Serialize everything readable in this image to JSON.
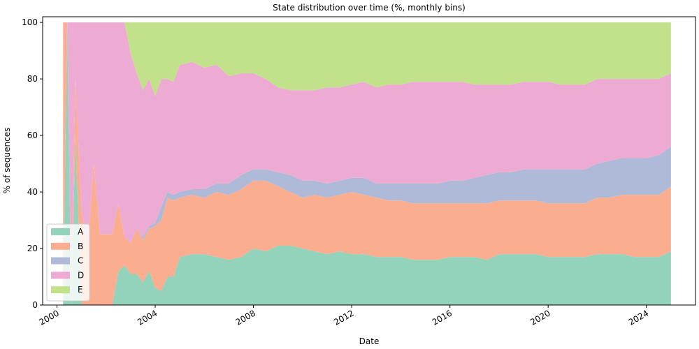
{
  "chart_data": {
    "type": "area",
    "stacked": true,
    "title": "State distribution over time (%, monthly bins)",
    "xlabel": "Date",
    "ylabel": "% of sequences",
    "xlim": [
      "1999-06-01",
      "2026-01-01"
    ],
    "ylim": [
      0,
      102
    ],
    "x_ticks": [
      "2000",
      "2004",
      "2008",
      "2012",
      "2016",
      "2020",
      "2024"
    ],
    "y_ticks": [
      0,
      20,
      40,
      60,
      80,
      100
    ],
    "grid": false,
    "legend": {
      "position": "lower-left",
      "entries": [
        "A",
        "B",
        "C",
        "D",
        "E"
      ]
    },
    "colors": {
      "A": "#93d3bc",
      "B": "#fbae8f",
      "C": "#aebad8",
      "D": "#edabd3",
      "E": "#c1e28a"
    },
    "x": [
      "2000-04",
      "2000-06",
      "2000-08",
      "2000-10",
      "2001-01",
      "2001-04",
      "2001-07",
      "2001-10",
      "2002-01",
      "2002-04",
      "2002-07",
      "2002-10",
      "2003-01",
      "2003-04",
      "2003-07",
      "2003-10",
      "2004-01",
      "2004-04",
      "2004-07",
      "2004-10",
      "2005-01",
      "2005-07",
      "2006-01",
      "2006-07",
      "2007-01",
      "2007-07",
      "2008-01",
      "2008-07",
      "2009-01",
      "2009-07",
      "2010-01",
      "2010-07",
      "2011-01",
      "2011-07",
      "2012-01",
      "2012-07",
      "2013-01",
      "2013-07",
      "2014-01",
      "2014-07",
      "2015-01",
      "2015-07",
      "2016-01",
      "2016-07",
      "2017-01",
      "2017-07",
      "2018-01",
      "2018-07",
      "2019-01",
      "2019-07",
      "2020-01",
      "2020-07",
      "2021-01",
      "2021-07",
      "2022-01",
      "2022-07",
      "2023-01",
      "2023-07",
      "2024-01",
      "2024-07",
      "2025-01"
    ],
    "series": [
      {
        "name": "A",
        "values": [
          0,
          100,
          0,
          60,
          0,
          0,
          0,
          0,
          0,
          0,
          12,
          14,
          11,
          11,
          8,
          12,
          6,
          5,
          10,
          10,
          17,
          18,
          18,
          17,
          16,
          17,
          20,
          19,
          21,
          21,
          20,
          19,
          18,
          19,
          18,
          18,
          17,
          17,
          17,
          16,
          16,
          16,
          17,
          17,
          17,
          16,
          18,
          18,
          18,
          18,
          17,
          17,
          17,
          17,
          18,
          18,
          18,
          17,
          17,
          17,
          19
        ]
      },
      {
        "name": "B",
        "values": [
          100,
          0,
          0,
          20,
          33,
          20,
          50,
          25,
          25,
          25,
          24,
          10,
          11,
          16,
          15,
          15,
          22,
          25,
          28,
          27,
          21,
          21,
          20,
          23,
          23,
          24,
          24,
          25,
          21,
          19,
          18,
          20,
          20,
          20,
          22,
          21,
          21,
          20,
          20,
          20,
          20,
          20,
          19,
          19,
          19,
          20,
          19,
          19,
          19,
          19,
          19,
          19,
          19,
          19,
          20,
          20,
          21,
          22,
          22,
          22,
          23
        ]
      },
      {
        "name": "C",
        "values": [
          0,
          0,
          0,
          0,
          0,
          0,
          0,
          0,
          0,
          0,
          0,
          0,
          0,
          0,
          1,
          1,
          1,
          5,
          2,
          2,
          2,
          2,
          3,
          3,
          4,
          5,
          4,
          4,
          5,
          6,
          6,
          5,
          5,
          5,
          5,
          6,
          5,
          6,
          6,
          7,
          7,
          7,
          8,
          8,
          9,
          10,
          10,
          10,
          11,
          11,
          12,
          12,
          12,
          12,
          12,
          13,
          13,
          13,
          13,
          14,
          14
        ]
      },
      {
        "name": "D",
        "values": [
          0,
          0,
          100,
          20,
          67,
          80,
          50,
          75,
          75,
          75,
          64,
          76,
          67,
          55,
          52,
          52,
          45,
          45,
          40,
          40,
          45,
          45,
          43,
          42,
          38,
          36,
          34,
          32,
          30,
          30,
          32,
          32,
          34,
          33,
          33,
          34,
          34,
          35,
          35,
          36,
          36,
          36,
          35,
          35,
          33,
          32,
          31,
          31,
          31,
          31,
          31,
          30,
          30,
          30,
          30,
          29,
          28,
          28,
          28,
          27,
          26
        ]
      },
      {
        "name": "E",
        "values": [
          0,
          0,
          0,
          0,
          0,
          0,
          0,
          0,
          0,
          0,
          0,
          0,
          11,
          18,
          24,
          20,
          26,
          20,
          20,
          21,
          15,
          14,
          16,
          15,
          19,
          18,
          18,
          20,
          23,
          24,
          24,
          24,
          23,
          23,
          22,
          21,
          23,
          22,
          22,
          21,
          21,
          21,
          21,
          21,
          22,
          22,
          22,
          22,
          21,
          21,
          21,
          22,
          22,
          22,
          20,
          20,
          20,
          20,
          20,
          20,
          18
        ]
      }
    ]
  }
}
